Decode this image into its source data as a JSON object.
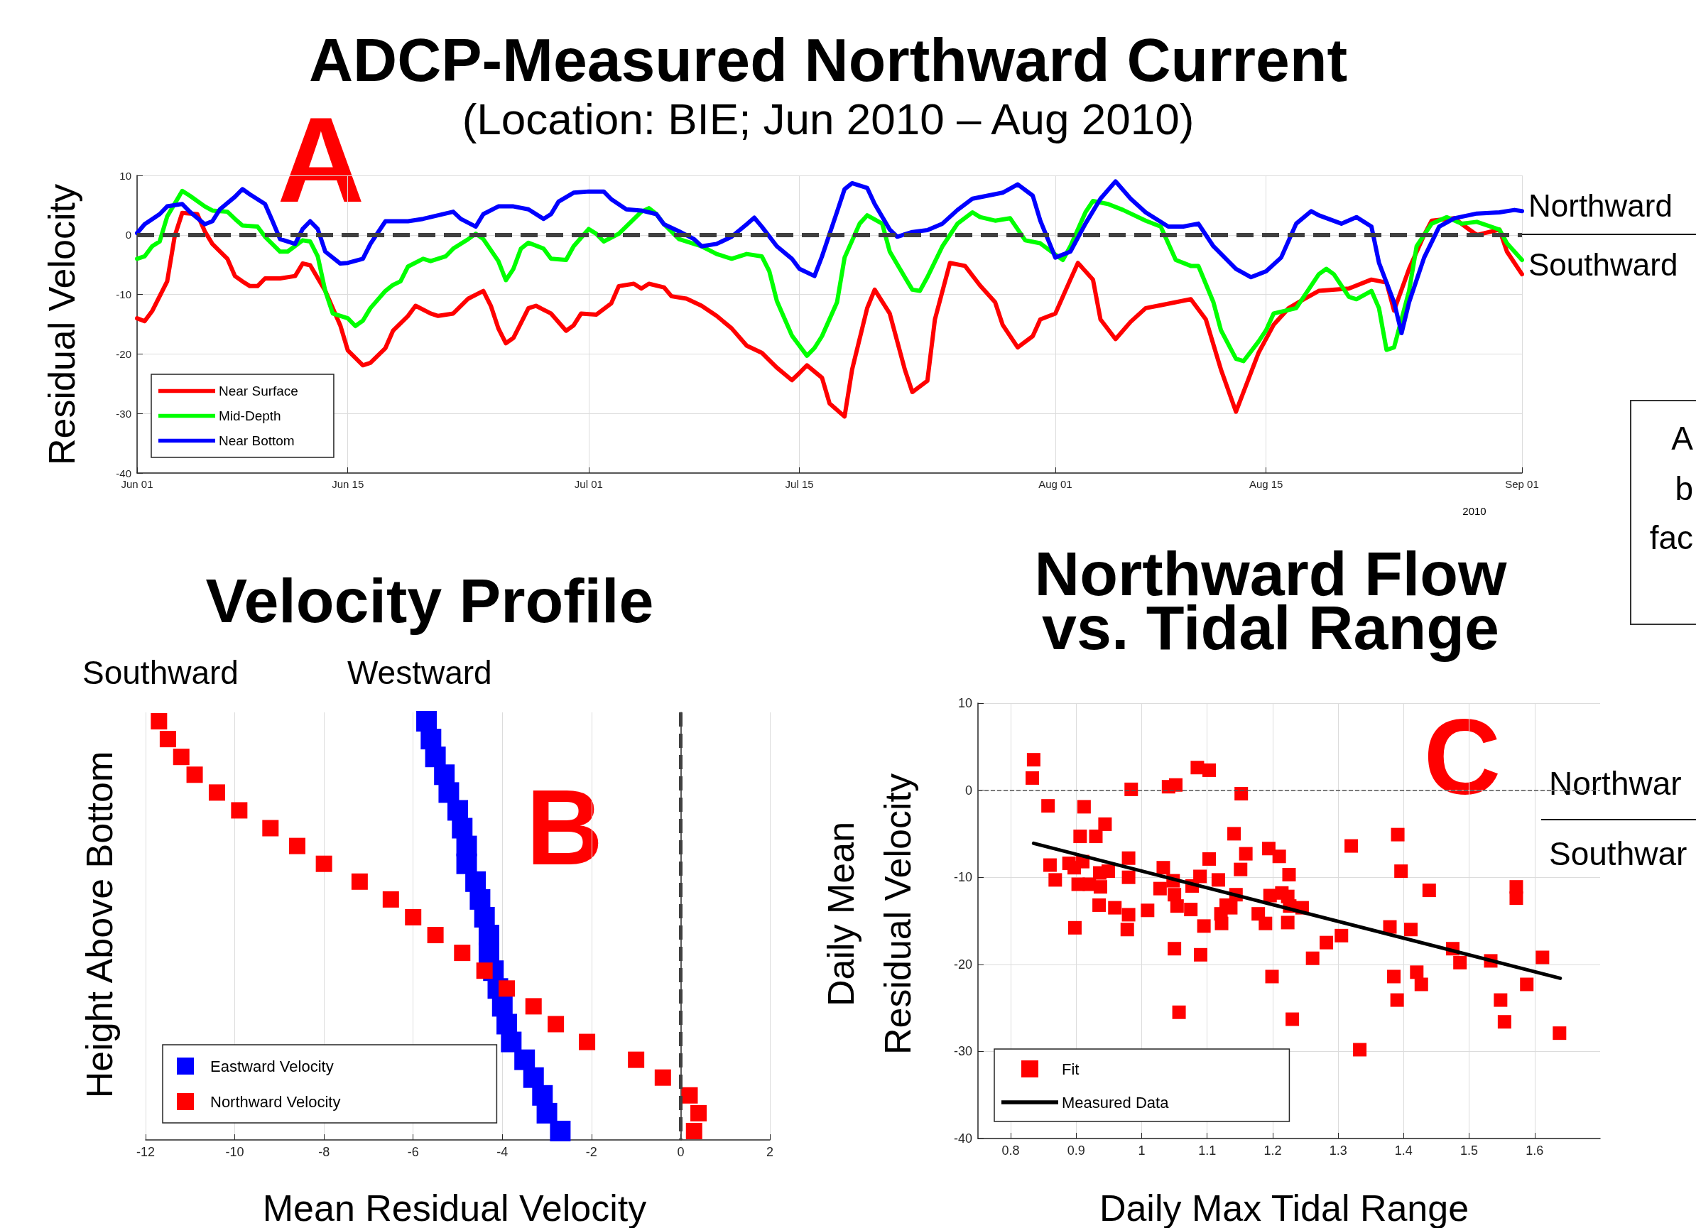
{
  "chart_data": [
    {
      "type": "line",
      "title": "ADCP-Measured Northward Current",
      "subtitle": "(Location: BIE; Jun 2010 – Aug 2010)",
      "ylabel": "Residual Velocity",
      "xlim": [
        "2010-06-01",
        "2010-09-01"
      ],
      "xticks": [
        {
          "value": "2010-06-01",
          "label": "Jun 01"
        },
        {
          "value": "2010-06-15",
          "label": "Jun 15"
        },
        {
          "value": "2010-07-01",
          "label": "Jul 01"
        },
        {
          "value": "2010-07-15",
          "label": "Jul 15"
        },
        {
          "value": "2010-08-01",
          "label": "Aug 01"
        },
        {
          "value": "2010-08-15",
          "label": "Aug 15"
        },
        {
          "value": "2010-09-01",
          "label": "Sep 01"
        }
      ],
      "ylim": [
        -40,
        10
      ],
      "yticks": [
        -40,
        -30,
        -20,
        -10,
        0,
        10
      ],
      "grid": true,
      "legend": "bottom left",
      "marker": "none",
      "line_style": "solid",
      "ref_lines": [
        {
          "axis": "y",
          "value": 0,
          "color": "#404040",
          "line_style": "dashed"
        }
      ],
      "annotations": [
        "A",
        "Northward",
        "Southward",
        "2010",
        "A",
        "b",
        "fac"
      ],
      "series": [
        {
          "name": "Near Surface",
          "color": "#ff0000",
          "x": [
            "2010-06-01",
            "2010-06-01T12:00",
            "2010-06-02",
            "2010-06-03",
            "2010-06-03T12:00",
            "2010-06-04",
            "2010-06-05",
            "2010-06-05T12:00",
            "2010-06-06",
            "2010-06-07",
            "2010-06-07T12:00",
            "2010-06-08",
            "2010-06-08T12:00",
            "2010-06-09",
            "2010-06-09T12:00",
            "2010-06-10T12:00",
            "2010-06-11T12:00",
            "2010-06-12",
            "2010-06-12T12:00",
            "2010-06-13T12:00",
            "2010-06-14T12:00",
            "2010-06-15",
            "2010-06-16",
            "2010-06-16T12:00",
            "2010-06-17T12:00",
            "2010-06-18",
            "2010-06-19",
            "2010-06-19T12:00",
            "2010-06-20T12:00",
            "2010-06-21",
            "2010-06-22",
            "2010-06-23",
            "2010-06-24",
            "2010-06-24T12:00",
            "2010-06-25",
            "2010-06-25T12:00",
            "2010-06-26",
            "2010-06-27",
            "2010-06-27T12:00",
            "2010-06-28T12:00",
            "2010-06-29T12:00",
            "2010-06-30",
            "2010-06-30T12:00",
            "2010-07-01T12:00",
            "2010-07-02T12:00",
            "2010-07-03",
            "2010-07-04",
            "2010-07-04T12:00",
            "2010-07-05",
            "2010-07-06",
            "2010-07-06T12:00",
            "2010-07-07T12:00",
            "2010-07-08T12:00",
            "2010-07-09T12:00",
            "2010-07-10T12:00",
            "2010-07-11T12:00",
            "2010-07-12T12:00",
            "2010-07-13T12:00",
            "2010-07-14T12:00",
            "2010-07-15",
            "2010-07-15T12:00",
            "2010-07-16T12:00",
            "2010-07-17",
            "2010-07-18",
            "2010-07-18T12:00",
            "2010-07-19T12:00",
            "2010-07-20",
            "2010-07-21",
            "2010-07-22",
            "2010-07-22T12:00",
            "2010-07-23T12:00",
            "2010-07-24",
            "2010-07-25",
            "2010-07-26",
            "2010-07-27",
            "2010-07-28",
            "2010-07-28T12:00",
            "2010-07-29T12:00",
            "2010-07-30T12:00",
            "2010-07-31",
            "2010-08-01",
            "2010-08-02",
            "2010-08-02T12:00",
            "2010-08-03T12:00",
            "2010-08-04",
            "2010-08-05",
            "2010-08-06",
            "2010-08-07",
            "2010-08-08",
            "2010-08-09",
            "2010-08-10",
            "2010-08-11",
            "2010-08-12",
            "2010-08-13",
            "2010-08-13T12:00",
            "2010-08-14T12:00",
            "2010-08-15T12:00",
            "2010-08-16T12:00",
            "2010-08-17T12:00",
            "2010-08-18T12:00",
            "2010-08-20T12:00",
            "2010-08-22",
            "2010-08-23",
            "2010-08-23T12:00",
            "2010-08-24T12:00",
            "2010-08-25T12:00",
            "2010-08-26",
            "2010-08-27T12:00",
            "2010-08-28T12:00",
            "2010-08-29",
            "2010-08-30T12:00",
            "2010-08-31",
            "2010-09-01"
          ],
          "values": [
            -14,
            -14.5,
            -12.8,
            -7.8,
            -0.2,
            3.7,
            3.5,
            0.6,
            -1.5,
            -4,
            -6.9,
            -7.8,
            -8.6,
            -8.6,
            -7.3,
            -7.3,
            -6.9,
            -4.8,
            -5.1,
            -9.4,
            -15.2,
            -19.4,
            -21.9,
            -21.5,
            -19,
            -16.1,
            -13.6,
            -11.9,
            -13.2,
            -13.6,
            -13.2,
            -10.7,
            -9.4,
            -11.9,
            -15.7,
            -18.2,
            -17.3,
            -12.3,
            -11.9,
            -13.2,
            -16.1,
            -15.2,
            -13.2,
            -13.4,
            -11.5,
            -8.6,
            -8.2,
            -9,
            -8.2,
            -8.8,
            -10.3,
            -10.7,
            -11.9,
            -13.6,
            -15.7,
            -18.6,
            -19.8,
            -22.3,
            -24.4,
            -23.2,
            -21.9,
            -24,
            -28.3,
            -30.5,
            -22.6,
            -12.3,
            -9.2,
            -13.2,
            -22.6,
            -26.4,
            -24.5,
            -14.2,
            -4.7,
            -5.2,
            -8.5,
            -11.3,
            -15.1,
            -18.9,
            -17,
            -14.2,
            -13.2,
            -7.5,
            -4.7,
            -7.5,
            -14.2,
            -17.5,
            -14.6,
            -12.3,
            -11.8,
            -11.3,
            -10.8,
            -14.2,
            -22.6,
            -29.7,
            -26.4,
            -19.8,
            -15.1,
            -12.3,
            -10.8,
            -9.4,
            -9,
            -7.5,
            -8,
            -12.7,
            -5.7,
            0,
            2.4,
            2.8,
            0.9,
            0,
            0.9,
            -2.8,
            -6.6
          ]
        },
        {
          "name": "Mid-Depth",
          "color": "#00ff00",
          "x": [
            "2010-06-01",
            "2010-06-01T12:00",
            "2010-06-02",
            "2010-06-02T12:00",
            "2010-06-03",
            "2010-06-04",
            "2010-06-04T12:00",
            "2010-06-05T12:00",
            "2010-06-06",
            "2010-06-07",
            "2010-06-07T12:00",
            "2010-06-08",
            "2010-06-09",
            "2010-06-09T12:00",
            "2010-06-10T12:00",
            "2010-06-11",
            "2010-06-12",
            "2010-06-12T12:00",
            "2010-06-13",
            "2010-06-13T12:00",
            "2010-06-14",
            "2010-06-15",
            "2010-06-15T12:00",
            "2010-06-16",
            "2010-06-16T12:00",
            "2010-06-17T12:00",
            "2010-06-18",
            "2010-06-18T12:00",
            "2010-06-19",
            "2010-06-20",
            "2010-06-20T12:00",
            "2010-06-21T12:00",
            "2010-06-22",
            "2010-06-23",
            "2010-06-23T12:00",
            "2010-06-24",
            "2010-06-25",
            "2010-06-25T12:00",
            "2010-06-26",
            "2010-06-26T12:00",
            "2010-06-27",
            "2010-06-28",
            "2010-06-28T12:00",
            "2010-06-29T12:00",
            "2010-06-30",
            "2010-07-01",
            "2010-07-01T12:00",
            "2010-07-02",
            "2010-07-03",
            "2010-07-04T12:00",
            "2010-07-05",
            "2010-07-05T12:00",
            "2010-07-06",
            "2010-07-07",
            "2010-07-08",
            "2010-07-08T12:00",
            "2010-07-09T12:00",
            "2010-07-10T12:00",
            "2010-07-11T12:00",
            "2010-07-12T12:00",
            "2010-07-13",
            "2010-07-13T12:00",
            "2010-07-14T12:00",
            "2010-07-15T12:00",
            "2010-07-16",
            "2010-07-16T12:00",
            "2010-07-17T12:00",
            "2010-07-18",
            "2010-07-19",
            "2010-07-19T12:00",
            "2010-07-20T12:00",
            "2010-07-21",
            "2010-07-22",
            "2010-07-22T12:00",
            "2010-07-23",
            "2010-07-23T12:00",
            "2010-07-24T12:00",
            "2010-07-25T12:00",
            "2010-07-26T12:00",
            "2010-07-27",
            "2010-07-28",
            "2010-07-29",
            "2010-07-30",
            "2010-07-31",
            "2010-08-01",
            "2010-08-01T12:00",
            "2010-08-02",
            "2010-08-03",
            "2010-08-03T12:00",
            "2010-08-04T12:00",
            "2010-08-05T12:00",
            "2010-08-07",
            "2010-08-08",
            "2010-08-09",
            "2010-08-10",
            "2010-08-10T12:00",
            "2010-08-11T12:00",
            "2010-08-12",
            "2010-08-13",
            "2010-08-13T12:00",
            "2010-08-14T12:00",
            "2010-08-15",
            "2010-08-15T12:00",
            "2010-08-17",
            "2010-08-17T12:00",
            "2010-08-18T12:00",
            "2010-08-19",
            "2010-08-19T12:00",
            "2010-08-20T12:00",
            "2010-08-21",
            "2010-08-22",
            "2010-08-22T12:00",
            "2010-08-23",
            "2010-08-23T12:00",
            "2010-08-24T12:00",
            "2010-08-25",
            "2010-08-26",
            "2010-08-27",
            "2010-08-28",
            "2010-08-29",
            "2010-08-30T12:00",
            "2010-08-31",
            "2010-09-01"
          ],
          "values": [
            -4,
            -3.6,
            -1.9,
            -1.1,
            3.1,
            7.4,
            6.6,
            4.8,
            4.1,
            3.9,
            2.7,
            1.6,
            1.4,
            -0.3,
            -2.8,
            -2.8,
            -0.9,
            -1.1,
            -3.6,
            -9.4,
            -13.2,
            -14,
            -15.3,
            -14.4,
            -12.3,
            -9.4,
            -8.4,
            -7.8,
            -5.3,
            -4,
            -4.4,
            -3.6,
            -2.3,
            -0.7,
            0.2,
            -0.7,
            -4.4,
            -7.6,
            -5.7,
            -2.3,
            -1.3,
            -2.3,
            -4,
            -4.2,
            -1.9,
            1,
            0.2,
            -1.1,
            0.2,
            3.9,
            4.5,
            3.5,
            1.8,
            -0.7,
            -1.5,
            -1.9,
            -3.2,
            -4,
            -3.2,
            -3.6,
            -6.1,
            -11.1,
            -16.9,
            -20.3,
            -19,
            -17,
            -11.3,
            -3.8,
            1.9,
            3.3,
            1.9,
            -2.8,
            -7.1,
            -9.2,
            -9.4,
            -7.1,
            -1.9,
            1.9,
            3.8,
            3,
            2.4,
            2.8,
            -0.9,
            -1.4,
            -3.3,
            -4.2,
            -1.9,
            3.8,
            5.7,
            5.2,
            4.2,
            2.4,
            1.4,
            -4.2,
            -5.2,
            -5.2,
            -11.3,
            -16,
            -20.8,
            -21.2,
            -17.9,
            -16,
            -13.2,
            -12.3,
            -10.4,
            -6.6,
            -5.7,
            -6.6,
            -10.4,
            -10.8,
            -9.4,
            -12.3,
            -19.3,
            -18.9,
            -9.4,
            -1.9,
            1.9,
            3,
            1.9,
            2.2,
            0.9,
            -1.4,
            -4.2
          ]
        },
        {
          "name": "Near Bottom",
          "color": "#0000ff",
          "x": [
            "2010-06-01",
            "2010-06-01T12:00",
            "2010-06-02T12:00",
            "2010-06-03",
            "2010-06-04",
            "2010-06-04T12:00",
            "2010-06-05T12:00",
            "2010-06-06",
            "2010-06-06T12:00",
            "2010-06-07T12:00",
            "2010-06-08",
            "2010-06-08T12:00",
            "2010-06-09T12:00",
            "2010-06-10",
            "2010-06-10T12:00",
            "2010-06-11T12:00",
            "2010-06-12",
            "2010-06-12T12:00",
            "2010-06-13",
            "2010-06-13T12:00",
            "2010-06-14T12:00",
            "2010-06-15",
            "2010-06-16",
            "2010-06-16T12:00",
            "2010-06-17T12:00",
            "2010-06-18T12:00",
            "2010-06-19",
            "2010-06-20",
            "2010-06-21",
            "2010-06-22",
            "2010-06-22T12:00",
            "2010-06-23T12:00",
            "2010-06-24",
            "2010-06-25",
            "2010-06-26",
            "2010-06-27",
            "2010-06-28",
            "2010-06-28T12:00",
            "2010-06-29",
            "2010-06-30",
            "2010-07-01",
            "2010-07-02",
            "2010-07-02T12:00",
            "2010-07-03T12:00",
            "2010-07-04T12:00",
            "2010-07-05T12:00",
            "2010-07-06",
            "2010-07-07",
            "2010-07-08",
            "2010-07-08T12:00",
            "2010-07-09T12:00",
            "2010-07-10T12:00",
            "2010-07-11T12:00",
            "2010-07-12",
            "2010-07-12T12:00",
            "2010-07-13T12:00",
            "2010-07-14T12:00",
            "2010-07-15",
            "2010-07-16",
            "2010-07-16T12:00",
            "2010-07-17T12:00",
            "2010-07-18",
            "2010-07-18T12:00",
            "2010-07-19T12:00",
            "2010-07-20",
            "2010-07-21",
            "2010-07-21T12:00",
            "2010-07-22T12:00",
            "2010-07-23T12:00",
            "2010-07-24T12:00",
            "2010-07-25T12:00",
            "2010-07-26T12:00",
            "2010-07-27T12:00",
            "2010-07-28T12:00",
            "2010-07-29T12:00",
            "2010-07-30T12:00",
            "2010-07-31",
            "2010-08-01",
            "2010-08-02",
            "2010-08-03",
            "2010-08-04",
            "2010-08-05",
            "2010-08-06",
            "2010-08-07",
            "2010-08-08T12:00",
            "2010-08-09T12:00",
            "2010-08-10T12:00",
            "2010-08-11T12:00",
            "2010-08-13",
            "2010-08-14",
            "2010-08-15",
            "2010-08-16",
            "2010-08-17",
            "2010-08-18",
            "2010-08-18T12:00",
            "2010-08-20",
            "2010-08-21",
            "2010-08-22",
            "2010-08-22T12:00",
            "2010-08-23T12:00",
            "2010-08-24",
            "2010-08-24T12:00",
            "2010-08-25T12:00",
            "2010-08-26T12:00",
            "2010-08-27T12:00",
            "2010-08-29",
            "2010-08-30T12:00",
            "2010-08-31T12:00",
            "2010-09-01"
          ],
          "values": [
            0.3,
            1.8,
            3.5,
            4.8,
            5.2,
            3.9,
            1.8,
            2.3,
            4.3,
            6.4,
            7.7,
            6.8,
            5.2,
            2.3,
            -0.7,
            -1.5,
            1,
            2.3,
            1,
            -2.8,
            -4.8,
            -4.7,
            -4,
            -1.5,
            2.3,
            2.3,
            2.3,
            2.7,
            3.3,
            3.9,
            2.7,
            1.4,
            3.5,
            4.8,
            4.8,
            4.3,
            2.7,
            3.5,
            5.6,
            7.1,
            7.3,
            7.3,
            6,
            4.3,
            4.1,
            3.5,
            1.8,
            0.6,
            -0.7,
            -1.9,
            -1.5,
            -0.3,
            1.8,
            2.9,
            1.4,
            -1.9,
            -4,
            -5.7,
            -6.9,
            -3.6,
            3.9,
            7.7,
            8.7,
            7.9,
            5.2,
            0.9,
            -0.3,
            0.5,
            0.8,
            1.9,
            4.2,
            6.1,
            6.6,
            7.1,
            8.5,
            6.6,
            2.4,
            -3.8,
            -2.8,
            1.9,
            6.1,
            9,
            6.1,
            3.8,
            1.4,
            1.4,
            1.9,
            -1.9,
            -5.7,
            -7.1,
            -6.1,
            -3.8,
            1.9,
            4,
            3.3,
            1.9,
            3,
            1.4,
            -4.7,
            -11.3,
            -16.5,
            -11.3,
            -3.8,
            1.4,
            2.8,
            3.6,
            3.8,
            4.2,
            4
          ]
        }
      ]
    },
    {
      "type": "scatter",
      "orientation": "horizontal",
      "title": "Velocity Profile",
      "xlabel": "Mean Residual Velocity",
      "ylabel": "Height Above Bottom",
      "categories": [
        null,
        null,
        null,
        null,
        null,
        null,
        null,
        null,
        null,
        null,
        null,
        null,
        null,
        null,
        null,
        null,
        null,
        null,
        null,
        null,
        null,
        null,
        null,
        null
      ],
      "xlim": [
        -12,
        2
      ],
      "xticks": [
        -12,
        -10,
        -8,
        -6,
        -4,
        -2,
        0,
        2
      ],
      "grid": "x",
      "legend": "bottom left",
      "marker": "square",
      "tick_labels": "x",
      "ref_lines": [
        {
          "axis": "x",
          "value": 0,
          "color": "#404040",
          "line_style": "dashed"
        }
      ],
      "annotations": [
        "B",
        "Southward",
        "Westward"
      ],
      "series": [
        {
          "name": "Eastward Velocity",
          "color": "#0000ff",
          "values": [
            -5.7,
            -5.6,
            -5.5,
            -5.3,
            -5.2,
            -5.0,
            -4.9,
            -4.8,
            -4.8,
            -4.6,
            -4.5,
            -4.4,
            -4.3,
            -4.3,
            -4.2,
            -4.1,
            -4.0,
            -3.9,
            -3.8,
            -3.5,
            -3.3,
            -3.1,
            -3.0,
            -2.7
          ]
        },
        {
          "name": "Northward Velocity",
          "color": "#ff0000",
          "values": [
            -11.7,
            -11.5,
            -11.2,
            -10.9,
            -10.4,
            -9.9,
            -9.2,
            -8.6,
            -8.0,
            -7.2,
            -6.5,
            -6.0,
            -5.5,
            -4.9,
            -4.4,
            -3.9,
            -3.3,
            -2.8,
            -2.1,
            -1.0,
            -0.4,
            0.2,
            0.4,
            0.3
          ]
        }
      ]
    },
    {
      "type": "scatter",
      "title": "Northward Flow\nvs. Tidal Range",
      "xlabel": "Daily Max Tidal Range",
      "ylabel": "Daily Mean\nResidual Velocity",
      "xlim": [
        0.75,
        1.7
      ],
      "xticks": [
        0.8,
        0.9,
        1,
        1.1,
        1.2,
        1.3,
        1.4,
        1.5,
        1.6
      ],
      "ylim": [
        -40,
        10
      ],
      "yticks": [
        -40,
        -30,
        -20,
        -10,
        0,
        10
      ],
      "grid": true,
      "legend": "bottom left",
      "marker": "square",
      "ref_lines": [
        {
          "axis": "y",
          "value": 0,
          "color": "#555555",
          "line_style": "dashed"
        }
      ],
      "annotations": [
        "C",
        "Northwar",
        "Southwar"
      ],
      "series": [
        {
          "name": "Fit",
          "color": "#ff0000",
          "x": [
            0.835,
            0.833,
            0.857,
            0.86,
            0.868,
            0.889,
            0.897,
            0.91,
            0.903,
            0.898,
            0.906,
            0.912,
            0.92,
            0.93,
            0.936,
            0.937,
            0.935,
            0.944,
            0.949,
            0.959,
            0.98,
            0.98,
            0.98,
            0.978,
            0.984,
            1.009,
            1.028,
            1.033,
            1.041,
            1.052,
            1.048,
            1.05,
            1.054,
            1.05,
            1.057,
            1.075,
            1.077,
            1.085,
            1.103,
            1.089,
            1.095,
            1.09,
            1.103,
            1.117,
            1.121,
            1.122,
            1.129,
            1.136,
            1.141,
            1.144,
            1.151,
            1.152,
            1.159,
            1.178,
            1.189,
            1.194,
            1.196,
            1.199,
            1.21,
            1.214,
            1.223,
            1.225,
            1.226,
            1.223,
            1.23,
            1.245,
            1.261,
            1.282,
            1.305,
            1.32,
            1.333,
            1.379,
            1.385,
            1.391,
            1.39,
            1.396,
            1.411,
            1.42,
            1.427,
            1.439,
            1.475,
            1.486,
            1.533,
            1.548,
            1.554,
            1.572,
            1.572,
            1.588,
            1.612,
            1.638
          ],
          "values": [
            3.5,
            1.4,
            -1.8,
            -8.6,
            -10.3,
            -8.4,
            -8.9,
            -8.2,
            -10.8,
            -15.8,
            -5.3,
            -1.9,
            -10.8,
            -5.3,
            -9.5,
            -11.1,
            -13.2,
            -3.9,
            -9.3,
            -13.5,
            -7.8,
            -10,
            -14.3,
            -16,
            0.1,
            -13.8,
            -11.3,
            -8.9,
            0.4,
            0.6,
            -10.4,
            -12,
            -13.3,
            -18.2,
            -25.5,
            -13.7,
            -11,
            2.6,
            2.3,
            -9.9,
            -15.6,
            -18.9,
            -7.9,
            -10.3,
            -14.2,
            -15.3,
            -13.2,
            -13.5,
            -5,
            -12,
            -9.1,
            -0.4,
            -7.3,
            -14.2,
            -15.3,
            -6.7,
            -12.1,
            -21.4,
            -7.6,
            -11.8,
            -12.2,
            -9.7,
            -13.3,
            -15.2,
            -26.3,
            -13.5,
            -19.3,
            -17.5,
            -16.7,
            -6.4,
            -29.8,
            -15.7,
            -21.4,
            -5.1,
            -24.1,
            -9.3,
            -16,
            -20.9,
            -22.3,
            -11.5,
            -18.2,
            -19.8,
            -19.6,
            -24.1,
            -26.6,
            -11.1,
            -12.4,
            -22.3,
            -19.2,
            -27.9
          ]
        },
        {
          "name": "Measured Data",
          "type": "line",
          "marker": "none",
          "line_style": "solid",
          "color": "#000000",
          "x": [
            0.835,
            1.639
          ],
          "values": [
            -6.1,
            -21.6
          ]
        }
      ]
    }
  ]
}
